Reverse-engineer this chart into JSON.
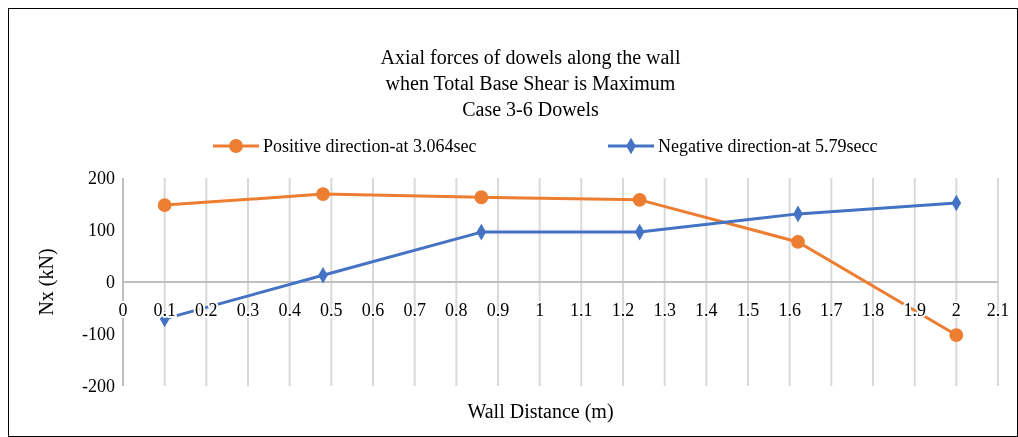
{
  "chart_data": {
    "type": "line",
    "title": "Axial forces of dowels along the wall\nwhen Total Base Shear is Maximum\nCase 3-6 Dowels",
    "xlabel": "Wall Distance (m)",
    "ylabel": "Nx (kN)",
    "x": [
      0.1,
      0.48,
      0.86,
      1.24,
      1.62,
      2.0
    ],
    "series": [
      {
        "name": "Positive direction-at 3.064sec",
        "color": "#ed7d31",
        "marker": "circle",
        "values": [
          148,
          169,
          163,
          158,
          77,
          -102
        ]
      },
      {
        "name": "Negative direction-at 5.79secc",
        "color": "#4472c4",
        "marker": "diamond",
        "values": [
          -71,
          13,
          96,
          96,
          131,
          152
        ]
      }
    ],
    "xlim": [
      0,
      2.1
    ],
    "xticks": [
      0,
      0.1,
      0.2,
      0.3,
      0.4,
      0.5,
      0.6,
      0.7,
      0.8,
      0.9,
      1,
      1.1,
      1.2,
      1.3,
      1.4,
      1.5,
      1.6,
      1.7,
      1.8,
      1.9,
      2,
      2.1
    ],
    "ylim": [
      -200,
      200
    ],
    "yticks": [
      -200,
      -100,
      0,
      100,
      200
    ],
    "grid": "x",
    "legend": "top",
    "line_style": "solid"
  }
}
